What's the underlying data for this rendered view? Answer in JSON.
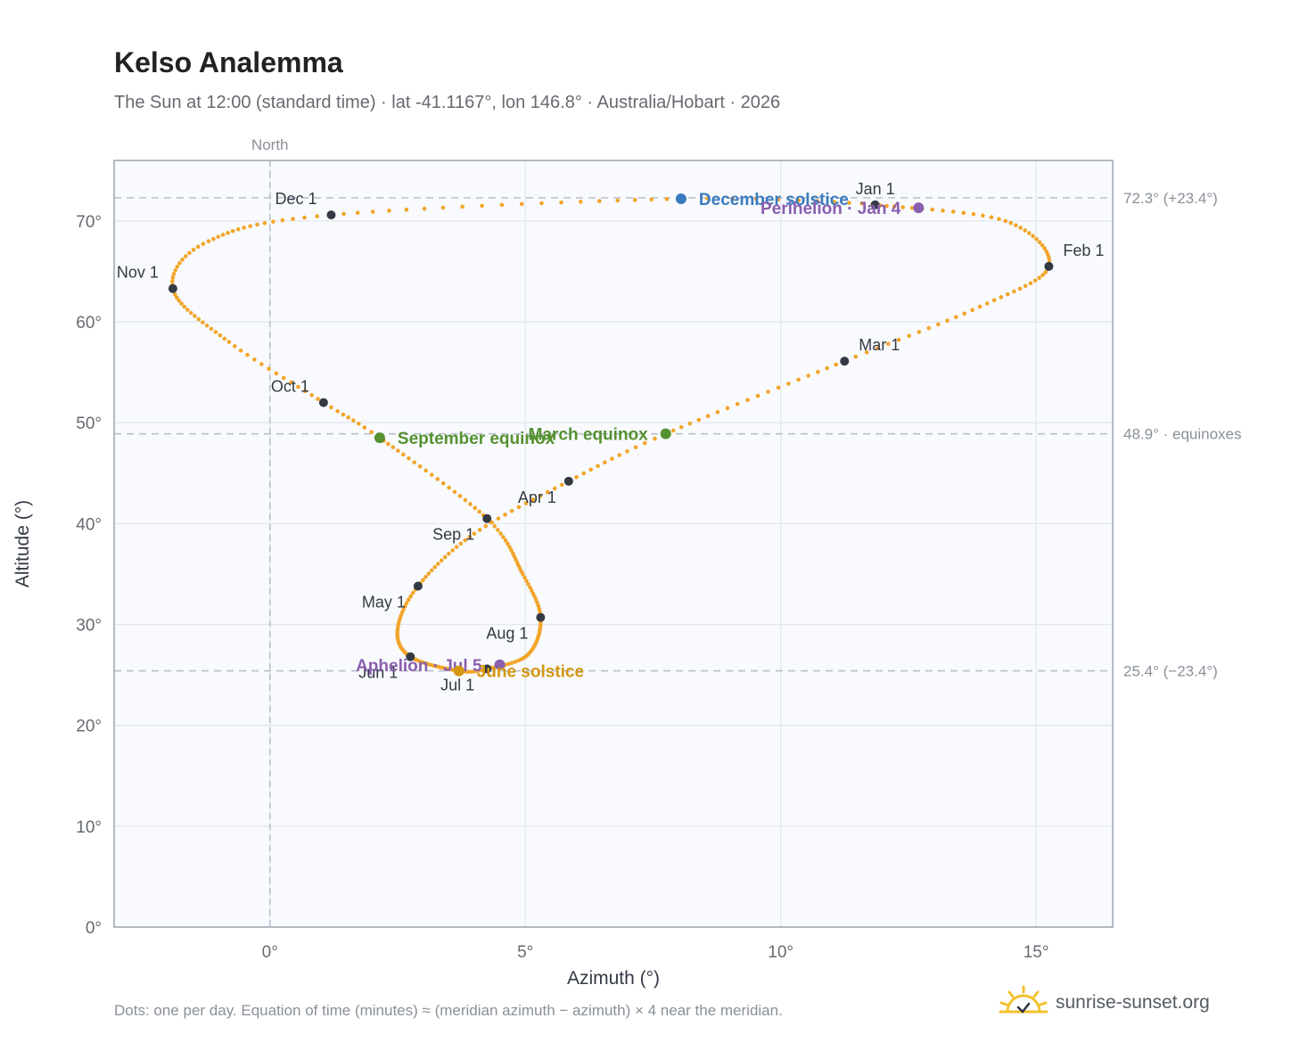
{
  "header": {
    "title": "Kelso Analemma",
    "subtitle": "The Sun at 12:00 (standard time) · lat -41.1167°, lon 146.8° · Australia/Hobart · 2026"
  },
  "footer": {
    "note": "Dots: one per day. Equation of time (minutes) ≈ (meridian azimuth − azimuth) × 4 near the meridian.",
    "brand": "sunrise-sunset.org"
  },
  "colors": {
    "path": "#f2a52a",
    "month_dot": "#333a44",
    "solstice_dec": "#3a7bbf",
    "solstice_jun": "#d4960f",
    "equinox": "#559130",
    "aphelion_perihelion": "#8a5fb0",
    "ref_line": "#b8c0cc",
    "plot_bg": "#f8fafd",
    "grid": "#e3e7ed"
  },
  "chart_data": {
    "type": "scatter",
    "xlabel": "Azimuth (°)",
    "ylabel": "Altitude (°)",
    "xlim": [
      -3.05,
      16.5
    ],
    "ylim": [
      0,
      76
    ],
    "x_ticks": [
      0,
      5,
      10,
      15
    ],
    "x_tick_labels": [
      "0°",
      "5°",
      "10°",
      "15°"
    ],
    "y_ticks": [
      0,
      10,
      20,
      30,
      40,
      50,
      60,
      70
    ],
    "y_tick_labels": [
      "0°",
      "10°",
      "20°",
      "30°",
      "40°",
      "50°",
      "60°",
      "70°"
    ],
    "north_line": {
      "x": 0,
      "label": "North"
    },
    "reference_lines": [
      {
        "y": 72.3,
        "label": "72.3° (+23.4°)"
      },
      {
        "y": 48.9,
        "label": "48.9° · equinoxes"
      },
      {
        "y": 25.4,
        "label": "25.4° (−23.4°)"
      }
    ],
    "grid": true,
    "daily_path": {
      "description": "one dot per day",
      "anchors": [
        {
          "date": "Jan 1",
          "x": 11.85,
          "y": 71.6
        },
        {
          "date": "Jan 16",
          "x": 14.4,
          "y": 70.0
        },
        {
          "date": "Feb 1",
          "x": 15.25,
          "y": 65.5
        },
        {
          "date": "Feb 15",
          "x": 13.9,
          "y": 61.5
        },
        {
          "date": "Mar 1",
          "x": 11.25,
          "y": 56.1
        },
        {
          "date": "Mar 20",
          "x": 7.75,
          "y": 48.9
        },
        {
          "date": "Apr 1",
          "x": 5.85,
          "y": 44.2
        },
        {
          "date": "Apr 15",
          "x": 4.0,
          "y": 39.0
        },
        {
          "date": "May 1",
          "x": 2.9,
          "y": 33.8
        },
        {
          "date": "May 15",
          "x": 2.5,
          "y": 29.5
        },
        {
          "date": "Jun 1",
          "x": 2.75,
          "y": 26.8
        },
        {
          "date": "Jun 21",
          "x": 3.7,
          "y": 25.4
        },
        {
          "date": "Jul 1",
          "x": 4.25,
          "y": 25.6
        },
        {
          "date": "Jul 15",
          "x": 5.05,
          "y": 27.0
        },
        {
          "date": "Aug 1",
          "x": 5.3,
          "y": 30.7
        },
        {
          "date": "Aug 15",
          "x": 4.95,
          "y": 35.0
        },
        {
          "date": "Sep 1",
          "x": 4.25,
          "y": 40.5
        },
        {
          "date": "Sep 22",
          "x": 2.15,
          "y": 48.5
        },
        {
          "date": "Oct 1",
          "x": 1.05,
          "y": 52.0
        },
        {
          "date": "Oct 15",
          "x": -0.8,
          "y": 58.0
        },
        {
          "date": "Nov 1",
          "x": -1.9,
          "y": 63.3
        },
        {
          "date": "Nov 15",
          "x": -1.2,
          "y": 68.0
        },
        {
          "date": "Dec 1",
          "x": 1.2,
          "y": 70.6
        },
        {
          "date": "Dec 21",
          "x": 8.05,
          "y": 72.2
        },
        {
          "date": "Dec 31",
          "x": 11.8,
          "y": 71.7
        }
      ]
    },
    "month_markers": [
      {
        "label": "Jan 1",
        "x": 11.85,
        "y": 71.6,
        "label_pos": "above"
      },
      {
        "label": "Feb 1",
        "x": 15.25,
        "y": 65.5,
        "label_pos": "above-right"
      },
      {
        "label": "Mar 1",
        "x": 11.25,
        "y": 56.1,
        "label_pos": "above-right"
      },
      {
        "label": "Apr 1",
        "x": 5.85,
        "y": 44.2,
        "label_pos": "below-left"
      },
      {
        "label": "May 1",
        "x": 2.9,
        "y": 33.8,
        "label_pos": "below-left"
      },
      {
        "label": "Jun 1",
        "x": 2.75,
        "y": 26.8,
        "label_pos": "below-left"
      },
      {
        "label": "Jul 1",
        "x": 4.25,
        "y": 25.6,
        "label_pos": "below-left"
      },
      {
        "label": "Aug 1",
        "x": 5.3,
        "y": 30.7,
        "label_pos": "below-left"
      },
      {
        "label": "Sep 1",
        "x": 4.25,
        "y": 40.5,
        "label_pos": "below-left"
      },
      {
        "label": "Oct 1",
        "x": 1.05,
        "y": 52.0,
        "label_pos": "above-left"
      },
      {
        "label": "Nov 1",
        "x": -1.9,
        "y": 63.3,
        "label_pos": "above-left"
      },
      {
        "label": "Dec 1",
        "x": 1.2,
        "y": 70.6,
        "label_pos": "above-left"
      }
    ],
    "events": [
      {
        "label": "December solstice",
        "x": 8.05,
        "y": 72.2,
        "color_key": "solstice_dec",
        "label_side": "right"
      },
      {
        "label": "Perihelion · Jan 4",
        "x": 12.7,
        "y": 71.3,
        "color_key": "aphelion_perihelion",
        "label_side": "left"
      },
      {
        "label": "March equinox",
        "x": 7.75,
        "y": 48.9,
        "color_key": "equinox",
        "label_side": "left"
      },
      {
        "label": "September equinox",
        "x": 2.15,
        "y": 48.5,
        "color_key": "equinox",
        "label_side": "right"
      },
      {
        "label": "Aphelion · Jul 5",
        "x": 4.5,
        "y": 26.0,
        "color_key": "aphelion_perihelion",
        "label_side": "left"
      },
      {
        "label": "June solstice",
        "x": 3.7,
        "y": 25.4,
        "color_key": "solstice_jun",
        "label_side": "right"
      }
    ]
  }
}
